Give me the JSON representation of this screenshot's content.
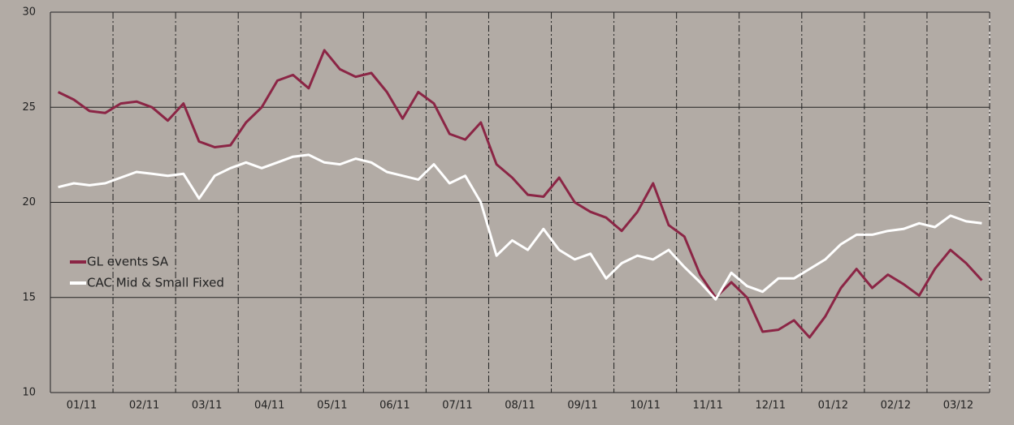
{
  "chart_data": {
    "type": "line",
    "categories": [
      null,
      "01/11",
      null,
      null,
      null,
      "02/11",
      null,
      null,
      null,
      "03/11",
      null,
      null,
      null,
      "04/11",
      null,
      null,
      null,
      "05/11",
      null,
      null,
      null,
      "06/11",
      null,
      null,
      null,
      "07/11",
      null,
      null,
      null,
      "08/11",
      null,
      null,
      null,
      "09/11",
      null,
      null,
      null,
      "10/11",
      null,
      null,
      null,
      "11/11",
      null,
      null,
      null,
      "12/11",
      null,
      null,
      null,
      "01/12",
      null,
      null,
      null,
      "02/12",
      null,
      null,
      null,
      "03/12",
      null,
      null
    ],
    "series": [
      {
        "name": "GL events SA",
        "color": "#8b2545",
        "values": [
          25.8,
          25.4,
          24.8,
          24.7,
          25.2,
          25.3,
          25.0,
          24.3,
          25.2,
          23.2,
          22.9,
          23.0,
          24.2,
          25.0,
          26.4,
          26.7,
          26.0,
          28.0,
          27.0,
          26.6,
          26.8,
          25.8,
          24.4,
          25.8,
          25.2,
          23.6,
          23.3,
          24.2,
          22.0,
          21.3,
          20.4,
          20.3,
          21.3,
          20.0,
          19.5,
          19.2,
          18.5,
          19.5,
          21.0,
          18.8,
          18.2,
          16.2,
          15.0,
          15.8,
          15.0,
          13.2,
          13.3,
          13.8,
          12.9,
          14.0,
          15.5,
          16.5,
          15.5,
          16.2,
          15.7,
          15.1,
          16.5,
          17.5,
          16.8,
          15.9
        ]
      },
      {
        "name": "CAC Mid & Small Fixed",
        "color": "#ffffff",
        "values": [
          20.8,
          21.0,
          20.9,
          21.0,
          21.3,
          21.6,
          21.5,
          21.4,
          21.5,
          20.2,
          21.4,
          21.8,
          22.1,
          21.8,
          22.1,
          22.4,
          22.5,
          22.1,
          22.0,
          22.3,
          22.1,
          21.6,
          21.4,
          21.2,
          22.0,
          21.0,
          21.4,
          20.0,
          17.2,
          18.0,
          17.5,
          18.6,
          17.5,
          17.0,
          17.3,
          16.0,
          16.8,
          17.2,
          17.0,
          17.5,
          16.6,
          15.8,
          14.9,
          16.3,
          15.6,
          15.3,
          16.0,
          16.0,
          16.5,
          17.0,
          17.8,
          18.3,
          18.3,
          18.5,
          18.6,
          18.9,
          18.7,
          19.3,
          19.0,
          18.9
        ]
      }
    ],
    "ylim": [
      10,
      30
    ],
    "yticks": [
      10,
      15,
      20,
      25,
      30
    ],
    "grid": true,
    "legend": "left"
  }
}
